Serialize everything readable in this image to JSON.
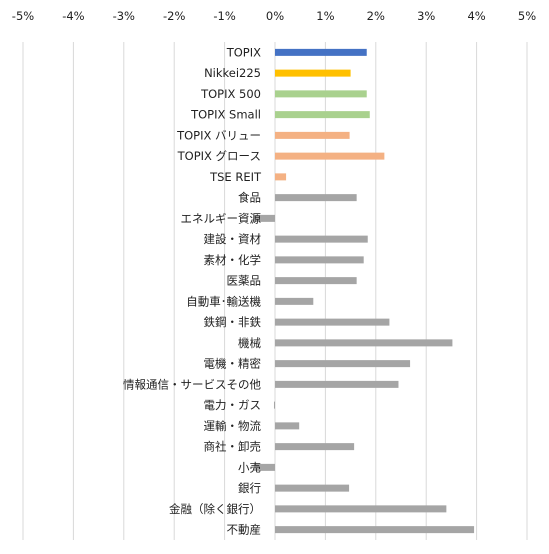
{
  "chart_data": {
    "type": "bar",
    "orientation": "horizontal",
    "title": "",
    "xlabel": "",
    "ylabel": "",
    "xlim": [
      -5,
      5
    ],
    "x_ticks": [
      -5,
      -4,
      -3,
      -2,
      -1,
      0,
      1,
      2,
      3,
      4,
      5
    ],
    "x_tick_labels": [
      "-5%",
      "-4%",
      "-3%",
      "-2%",
      "-1%",
      "0%",
      "1%",
      "2%",
      "3%",
      "4%",
      "5%"
    ],
    "x_axis_position": "top",
    "grid": "vertical",
    "legend": "none",
    "categories": [
      "TOPIX",
      "Nikkei225",
      "TOPIX 500",
      "TOPIX Small",
      "TOPIX バリュー",
      "TOPIX グロース",
      "TSE REIT",
      "食品",
      "エネルギー資源",
      "建設・資材",
      "素材・化学",
      "医薬品",
      "自動車･輸送機",
      "鉄鋼・非鉄",
      "機械",
      "電機・精密",
      "情報通信・サービスその他",
      "電力・ガス",
      "運輸・物流",
      "商社・卸売",
      "小売",
      "銀行",
      "金融（除く銀行）",
      "不動産"
    ],
    "values": [
      1.82,
      1.5,
      1.82,
      1.88,
      1.48,
      2.17,
      0.22,
      1.62,
      -0.42,
      1.84,
      1.76,
      1.62,
      0.76,
      2.27,
      3.52,
      2.68,
      2.45,
      -0.02,
      0.48,
      1.57,
      -0.42,
      1.47,
      3.4,
      3.95
    ],
    "colors": [
      "#4472C4",
      "#FFC000",
      "#A9D18E",
      "#A9D18E",
      "#F4B183",
      "#F4B183",
      "#F4B183",
      "#A5A5A5",
      "#A5A5A5",
      "#A5A5A5",
      "#A5A5A5",
      "#A5A5A5",
      "#A5A5A5",
      "#A5A5A5",
      "#A5A5A5",
      "#A5A5A5",
      "#A5A5A5",
      "#A5A5A5",
      "#A5A5A5",
      "#A5A5A5",
      "#A5A5A5",
      "#A5A5A5",
      "#A5A5A5",
      "#A5A5A5"
    ],
    "gridline_color": "#D9D9D9"
  }
}
